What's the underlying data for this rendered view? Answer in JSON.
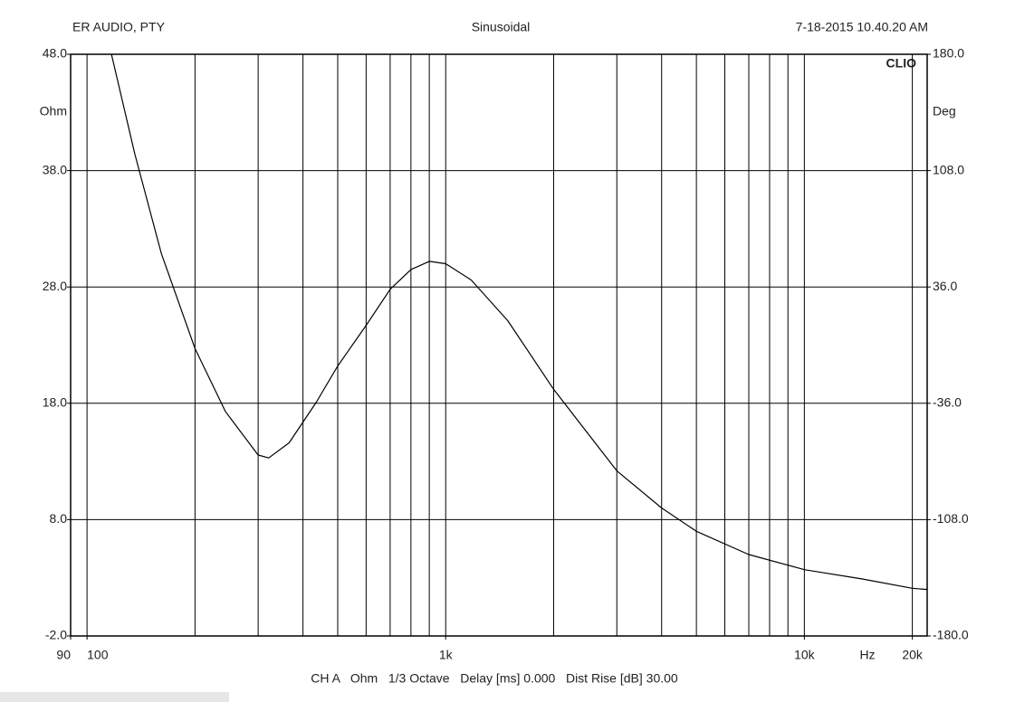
{
  "chart_data": {
    "type": "line",
    "header_left": "ER AUDIO, PTY",
    "title": "Sinusoidal",
    "header_right": "7-18-2015 10.40.20 AM",
    "brand": "CLIO",
    "ylabel": "Ohm",
    "y2label": "Deg",
    "xlabel": "Hz",
    "footer": "CH A   Ohm   1/3 Octave   Delay [ms] 0.000   Dist Rise [dB] 30.00",
    "xscale": "log",
    "grid": true,
    "xlim": [
      90,
      22000
    ],
    "xticks": [
      {
        "value": 90,
        "label": "90"
      },
      {
        "value": 100,
        "label": "100"
      },
      {
        "value": 1000,
        "label": "1k"
      },
      {
        "value": 10000,
        "label": "10k"
      },
      {
        "value": 20000,
        "label": "20k"
      }
    ],
    "xgrid": [
      100,
      200,
      300,
      400,
      500,
      600,
      700,
      800,
      900,
      1000,
      2000,
      3000,
      4000,
      5000,
      6000,
      7000,
      8000,
      9000,
      10000,
      20000
    ],
    "ylim": [
      -2,
      48
    ],
    "yticks": [
      {
        "value": -2,
        "label": "-2.0"
      },
      {
        "value": 8,
        "label": "8.0"
      },
      {
        "value": 18,
        "label": "18.0"
      },
      {
        "value": 28,
        "label": "28.0"
      },
      {
        "value": 38,
        "label": "38.0"
      },
      {
        "value": 48,
        "label": "48.0"
      }
    ],
    "y2lim": [
      -180,
      180
    ],
    "y2ticks": [
      {
        "value": -180,
        "label": "-180.0"
      },
      {
        "value": -108,
        "label": "-108.0"
      },
      {
        "value": -36,
        "label": "-36.0"
      },
      {
        "value": 36,
        "label": "36.0"
      },
      {
        "value": 108,
        "label": "108.0"
      },
      {
        "value": 180,
        "label": "180.0"
      }
    ],
    "x": [
      117,
      136,
      161,
      200,
      243,
      300,
      321,
      366,
      436,
      500,
      600,
      700,
      800,
      900,
      1000,
      1178,
      1490,
      2000,
      3000,
      4000,
      5000,
      7000,
      10000,
      14500,
      20000,
      22000
    ],
    "series": [
      {
        "name": "Ohm",
        "color": "#000000",
        "values": [
          48,
          39.4,
          30.9,
          22.7,
          17.3,
          13.55,
          13.3,
          14.6,
          18.1,
          21.2,
          24.7,
          27.8,
          29.5,
          30.2,
          30.0,
          28.6,
          25.1,
          19.2,
          12.2,
          9.0,
          7.0,
          5.0,
          3.7,
          2.9,
          2.1,
          2.0
        ]
      }
    ]
  }
}
